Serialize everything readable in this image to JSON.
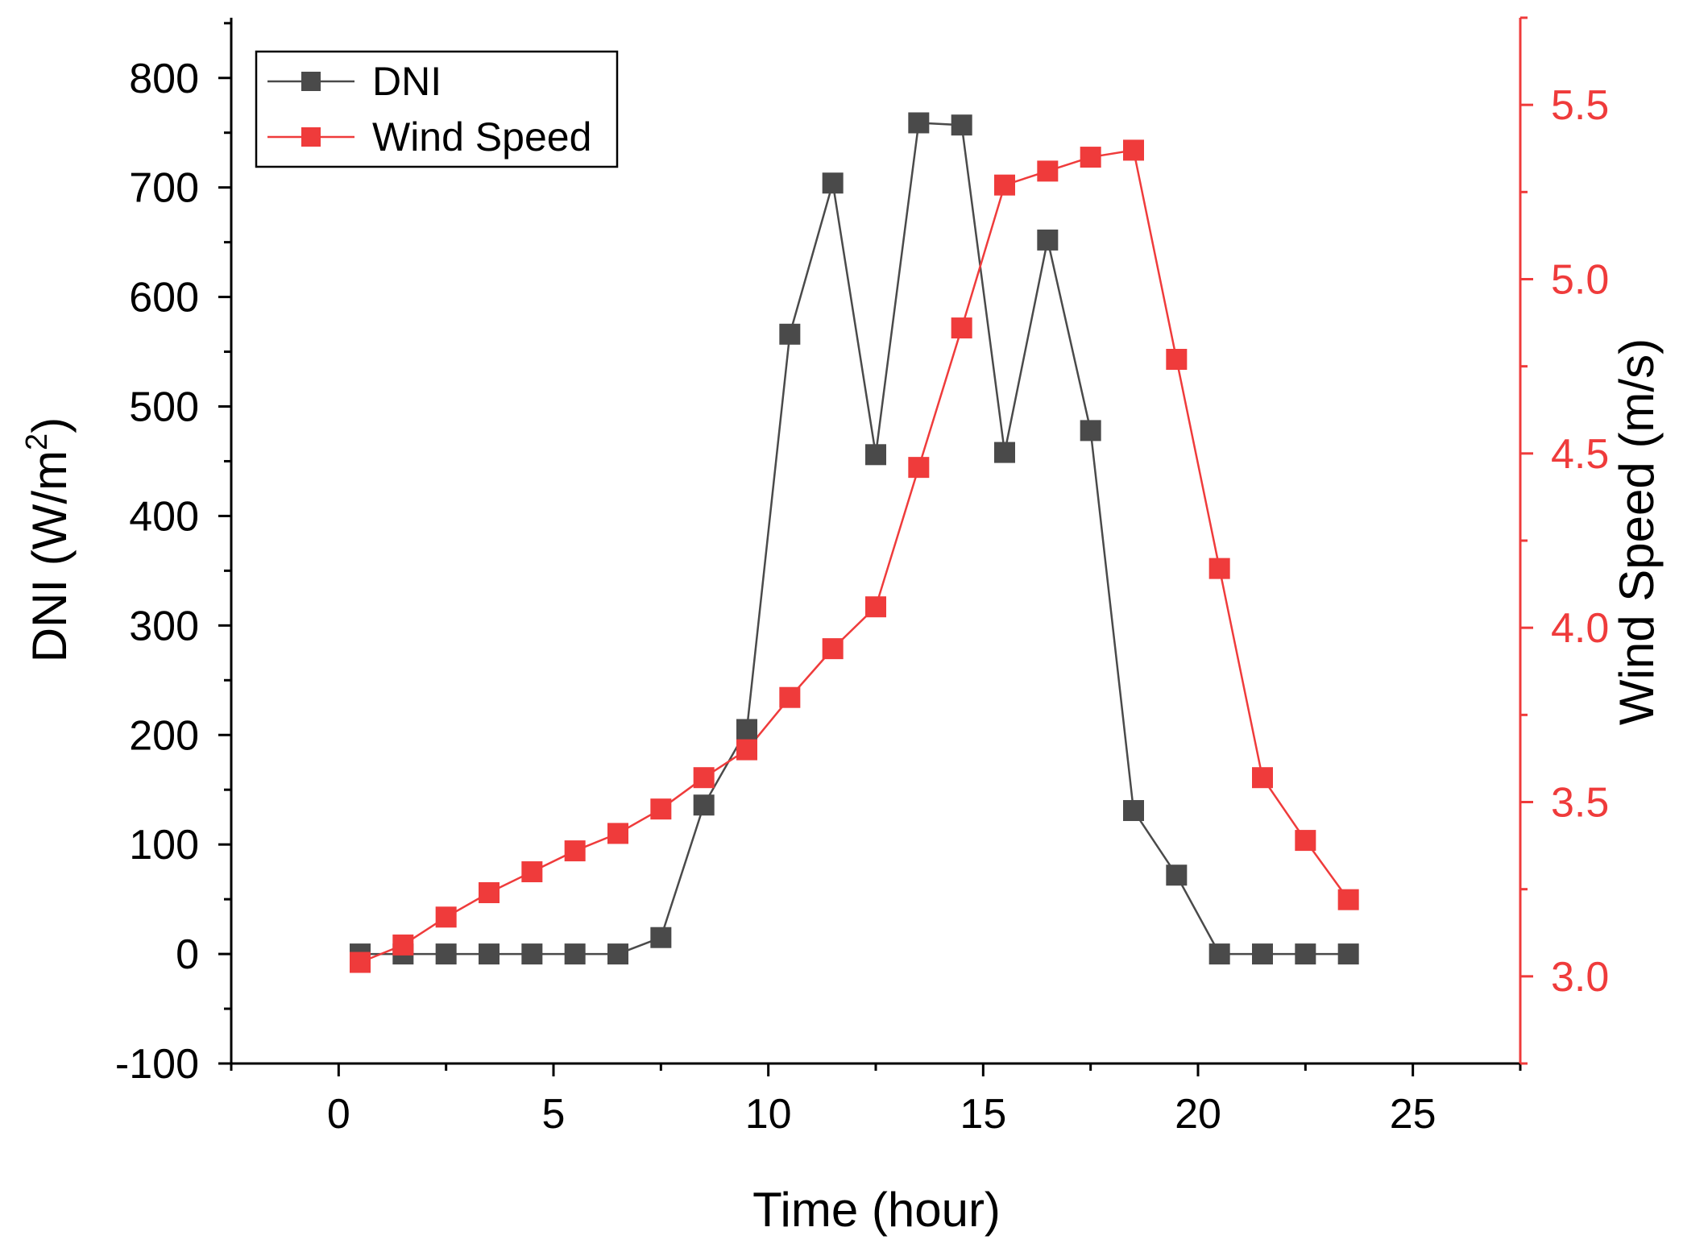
{
  "chart_data": {
    "type": "line",
    "title": "",
    "xlabel": "Time (hour)",
    "ylabel": "DNI (W/m",
    "ylabel_sup": "2",
    "ylabel_close": ")",
    "y2label": "Wind Speed (m/s)",
    "xlim": [
      -2.5,
      27.5
    ],
    "ylim": [
      -100,
      855
    ],
    "y2lim": [
      2.75,
      5.75
    ],
    "xticks": [
      0,
      5,
      10,
      15,
      20,
      25
    ],
    "xtick_labels": [
      "0",
      "5",
      "10",
      "15",
      "20",
      "25"
    ],
    "yticks": [
      -100,
      0,
      100,
      200,
      300,
      400,
      500,
      600,
      700,
      800
    ],
    "ytick_labels": [
      "-100",
      "0",
      "100",
      "200",
      "300",
      "400",
      "500",
      "600",
      "700",
      "800"
    ],
    "y2ticks": [
      3.0,
      3.5,
      4.0,
      4.5,
      5.0,
      5.5
    ],
    "y2tick_labels": [
      "3.0",
      "3.5",
      "4.0",
      "4.5",
      "5.0",
      "5.5"
    ],
    "x": [
      0.5,
      1.5,
      2.5,
      3.5,
      4.5,
      5.5,
      6.5,
      7.5,
      8.5,
      9.5,
      10.5,
      11.5,
      12.5,
      13.5,
      14.5,
      15.5,
      16.5,
      17.5,
      18.5,
      19.5,
      20.5,
      21.5,
      22.5,
      23.5
    ],
    "series": [
      {
        "name": "DNI",
        "axis": "left",
        "color": "#4a4a4a",
        "values": [
          0,
          0,
          0,
          0,
          0,
          0,
          0,
          15,
          136,
          205,
          566,
          704,
          456,
          759,
          757,
          458,
          652,
          478,
          131,
          72,
          0,
          0,
          0,
          0
        ]
      },
      {
        "name": "Wind Speed",
        "axis": "right",
        "color": "#ef3b3b",
        "values": [
          3.04,
          3.09,
          3.17,
          3.24,
          3.3,
          3.36,
          3.41,
          3.48,
          3.57,
          3.65,
          3.8,
          3.94,
          4.06,
          4.46,
          4.86,
          5.27,
          5.31,
          5.35,
          5.37,
          4.77,
          4.17,
          3.57,
          3.39,
          3.22
        ]
      }
    ],
    "legend_position": "top-left",
    "grid": false,
    "colors": {
      "axis": "#000000",
      "right_axis": "#ef3b3b"
    }
  }
}
